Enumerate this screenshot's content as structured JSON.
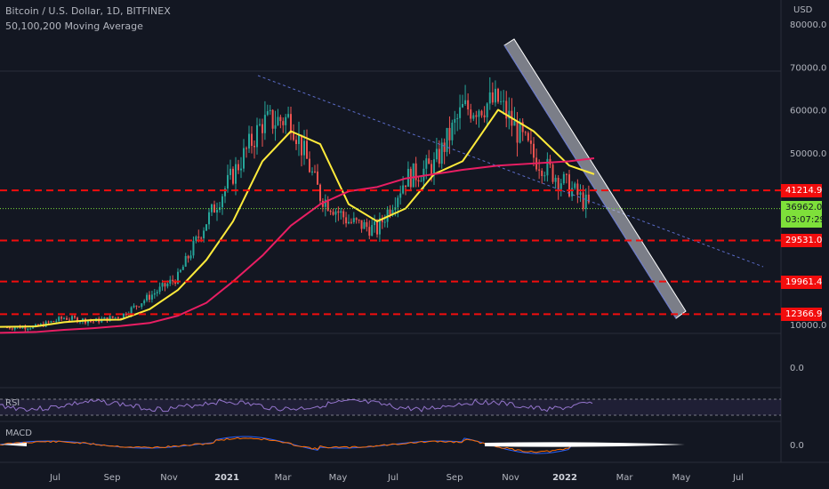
{
  "header": {
    "symbol_line": "Bitcoin / U.S. Dollar, 1D, BITFINEX",
    "indicator_line": "50,100,200 Moving Average"
  },
  "currency": "USD",
  "price_axis": [
    {
      "label": "80000.0",
      "value": 80000
    },
    {
      "label": "70000.0",
      "value": 70000
    },
    {
      "label": "60000.0",
      "value": 60000
    },
    {
      "label": "50000.0",
      "value": 50000
    },
    {
      "label": "10000.0",
      "value": 10000
    },
    {
      "label": "0.0",
      "value": 0
    }
  ],
  "price_tags": [
    {
      "label": "41214.9",
      "value": 41214.9,
      "color": "#f20d0d"
    },
    {
      "label": "29531.0",
      "value": 29531.0,
      "color": "#f20d0d"
    },
    {
      "label": "19961.4",
      "value": 19961.4,
      "color": "#f20d0d"
    },
    {
      "label": "12366.9",
      "value": 12366.9,
      "color": "#f20d0d"
    }
  ],
  "current_price": {
    "price": "36962.0",
    "countdown": "03:07:29",
    "value": 36962,
    "color": "#7ee03a"
  },
  "time_axis": [
    "Jul",
    "Sep",
    "Nov",
    "2021",
    "Mar",
    "May",
    "Jul",
    "Sep",
    "Nov",
    "2022",
    "Mar",
    "May",
    "Jul"
  ],
  "panes": {
    "rsi_label": "RSI",
    "macd_label": "MACD",
    "macd_axis": "0.0"
  },
  "chart_data": {
    "type": "line",
    "title": "Bitcoin / U.S. Dollar, 1D, BITFINEX",
    "ylabel": "USD",
    "ylim": [
      0,
      80000
    ],
    "x": [
      "2020-06",
      "2020-07",
      "2020-08",
      "2020-09",
      "2020-10",
      "2020-11",
      "2020-12",
      "2021-01",
      "2021-02",
      "2021-03",
      "2021-04",
      "2021-05",
      "2021-06",
      "2021-07",
      "2021-08",
      "2021-09",
      "2021-10",
      "2021-11",
      "2021-12",
      "2022-01",
      "2022-02"
    ],
    "series": [
      {
        "name": "Price",
        "color": "#26a69a",
        "values": [
          9300,
          9400,
          11500,
          10700,
          11900,
          16500,
          21000,
          34000,
          45000,
          57000,
          58000,
          40000,
          34000,
          32000,
          44000,
          47000,
          60000,
          62000,
          49000,
          42000,
          37000
        ]
      },
      {
        "name": "",
        "color": "#ffeb3b",
        "values": [
          9400,
          9500,
          10500,
          11000,
          11100,
          13500,
          18000,
          25000,
          34000,
          48000,
          55000,
          52000,
          38000,
          34000,
          37000,
          45000,
          48000,
          60000,
          55000,
          47000,
          45000
        ]
      },
      {
        "name": "",
        "color": "#e91e63",
        "values": [
          8000,
          8200,
          8700,
          9100,
          9600,
          10300,
          12000,
          15000,
          20000,
          26000,
          33000,
          38000,
          41000,
          42000,
          44000,
          45000,
          46000,
          47000,
          47500,
          48000,
          48700
        ]
      }
    ],
    "horizontal_levels": [
      41214.9,
      29531.0,
      19961.4,
      12366.9
    ]
  }
}
